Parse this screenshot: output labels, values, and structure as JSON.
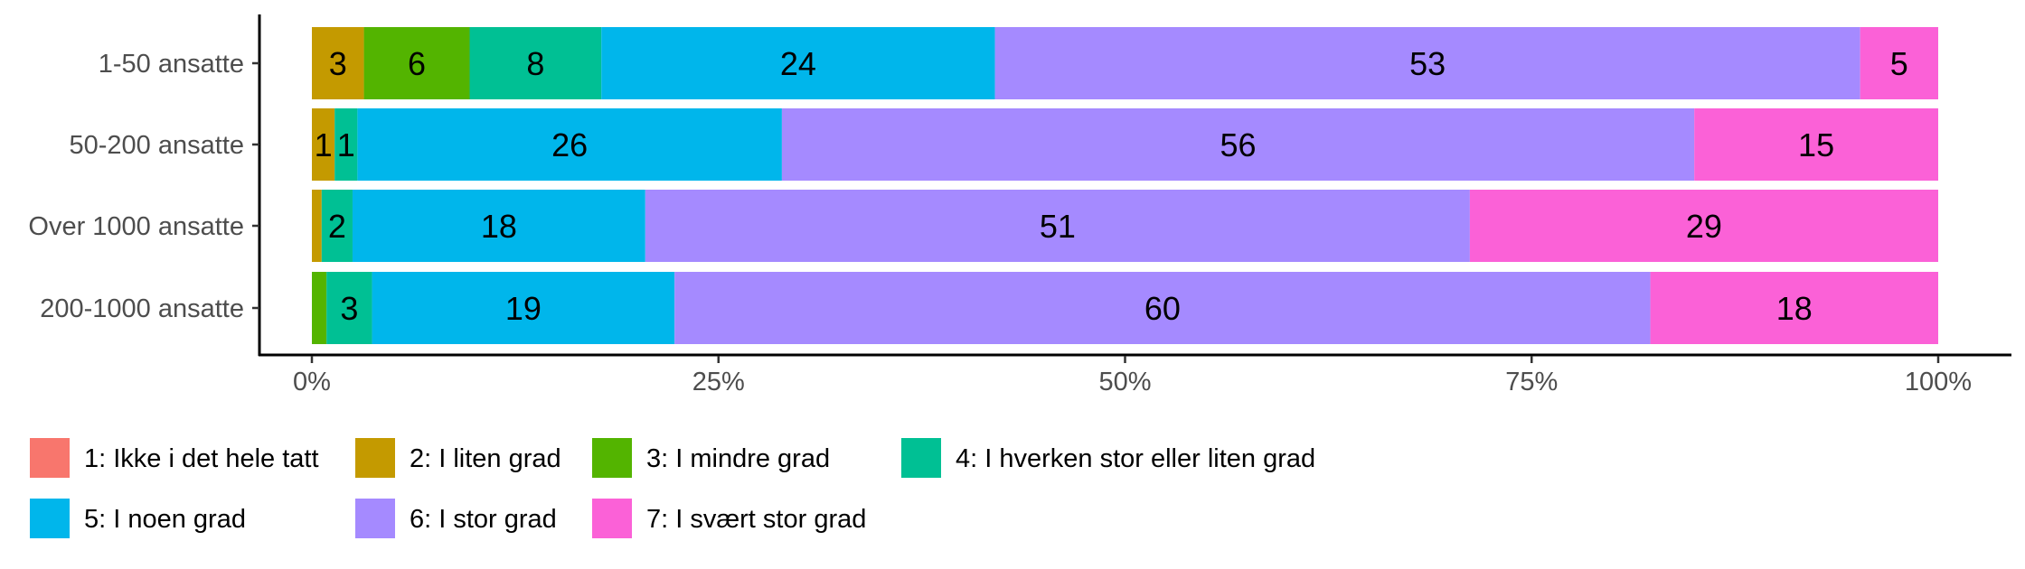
{
  "chart_data": {
    "type": "bar",
    "orientation": "horizontal",
    "stacked": "percent",
    "categories": [
      "1-50 ansatte",
      "50-200 ansatte",
      "Over 1000 ansatte",
      "200-1000 ansatte"
    ],
    "series": [
      {
        "name": "1: Ikke i det hele tatt",
        "color": "#F8766D",
        "values": [
          0,
          0,
          0,
          0
        ],
        "labels": [
          "",
          "",
          "",
          ""
        ]
      },
      {
        "name": "2: I liten grad",
        "color": "#C49A00",
        "values": [
          3.2,
          1.4,
          0.6,
          0
        ],
        "labels": [
          "3",
          "1",
          "",
          ""
        ]
      },
      {
        "name": "3: I mindre grad",
        "color": "#53B400",
        "values": [
          6.5,
          0,
          0,
          0.9
        ],
        "labels": [
          "6",
          "",
          "",
          ""
        ]
      },
      {
        "name": "4: I hverken stor eller liten grad",
        "color": "#00C094",
        "values": [
          8.1,
          1.4,
          1.9,
          2.8
        ],
        "labels": [
          "8",
          "1",
          "2",
          "3"
        ]
      },
      {
        "name": "5: I noen grad",
        "color": "#00B6EB",
        "values": [
          24.2,
          26.1,
          18.0,
          18.6
        ],
        "labels": [
          "24",
          "26",
          "18",
          "19"
        ]
      },
      {
        "name": "6: I stor grad",
        "color": "#A58AFF",
        "values": [
          53.2,
          56.1,
          50.7,
          60.0
        ],
        "labels": [
          "53",
          "56",
          "51",
          "60"
        ]
      },
      {
        "name": "7: I svært stor grad",
        "color": "#FB61D7",
        "values": [
          4.8,
          15.0,
          28.8,
          17.7
        ],
        "labels": [
          "5",
          "15",
          "29",
          "18"
        ]
      }
    ],
    "xlabel": "",
    "ylabel": "",
    "xlim": [
      0,
      100
    ],
    "xticks": [
      "0%",
      "25%",
      "50%",
      "75%",
      "100%"
    ],
    "grid": false,
    "legend_position": "bottom"
  }
}
